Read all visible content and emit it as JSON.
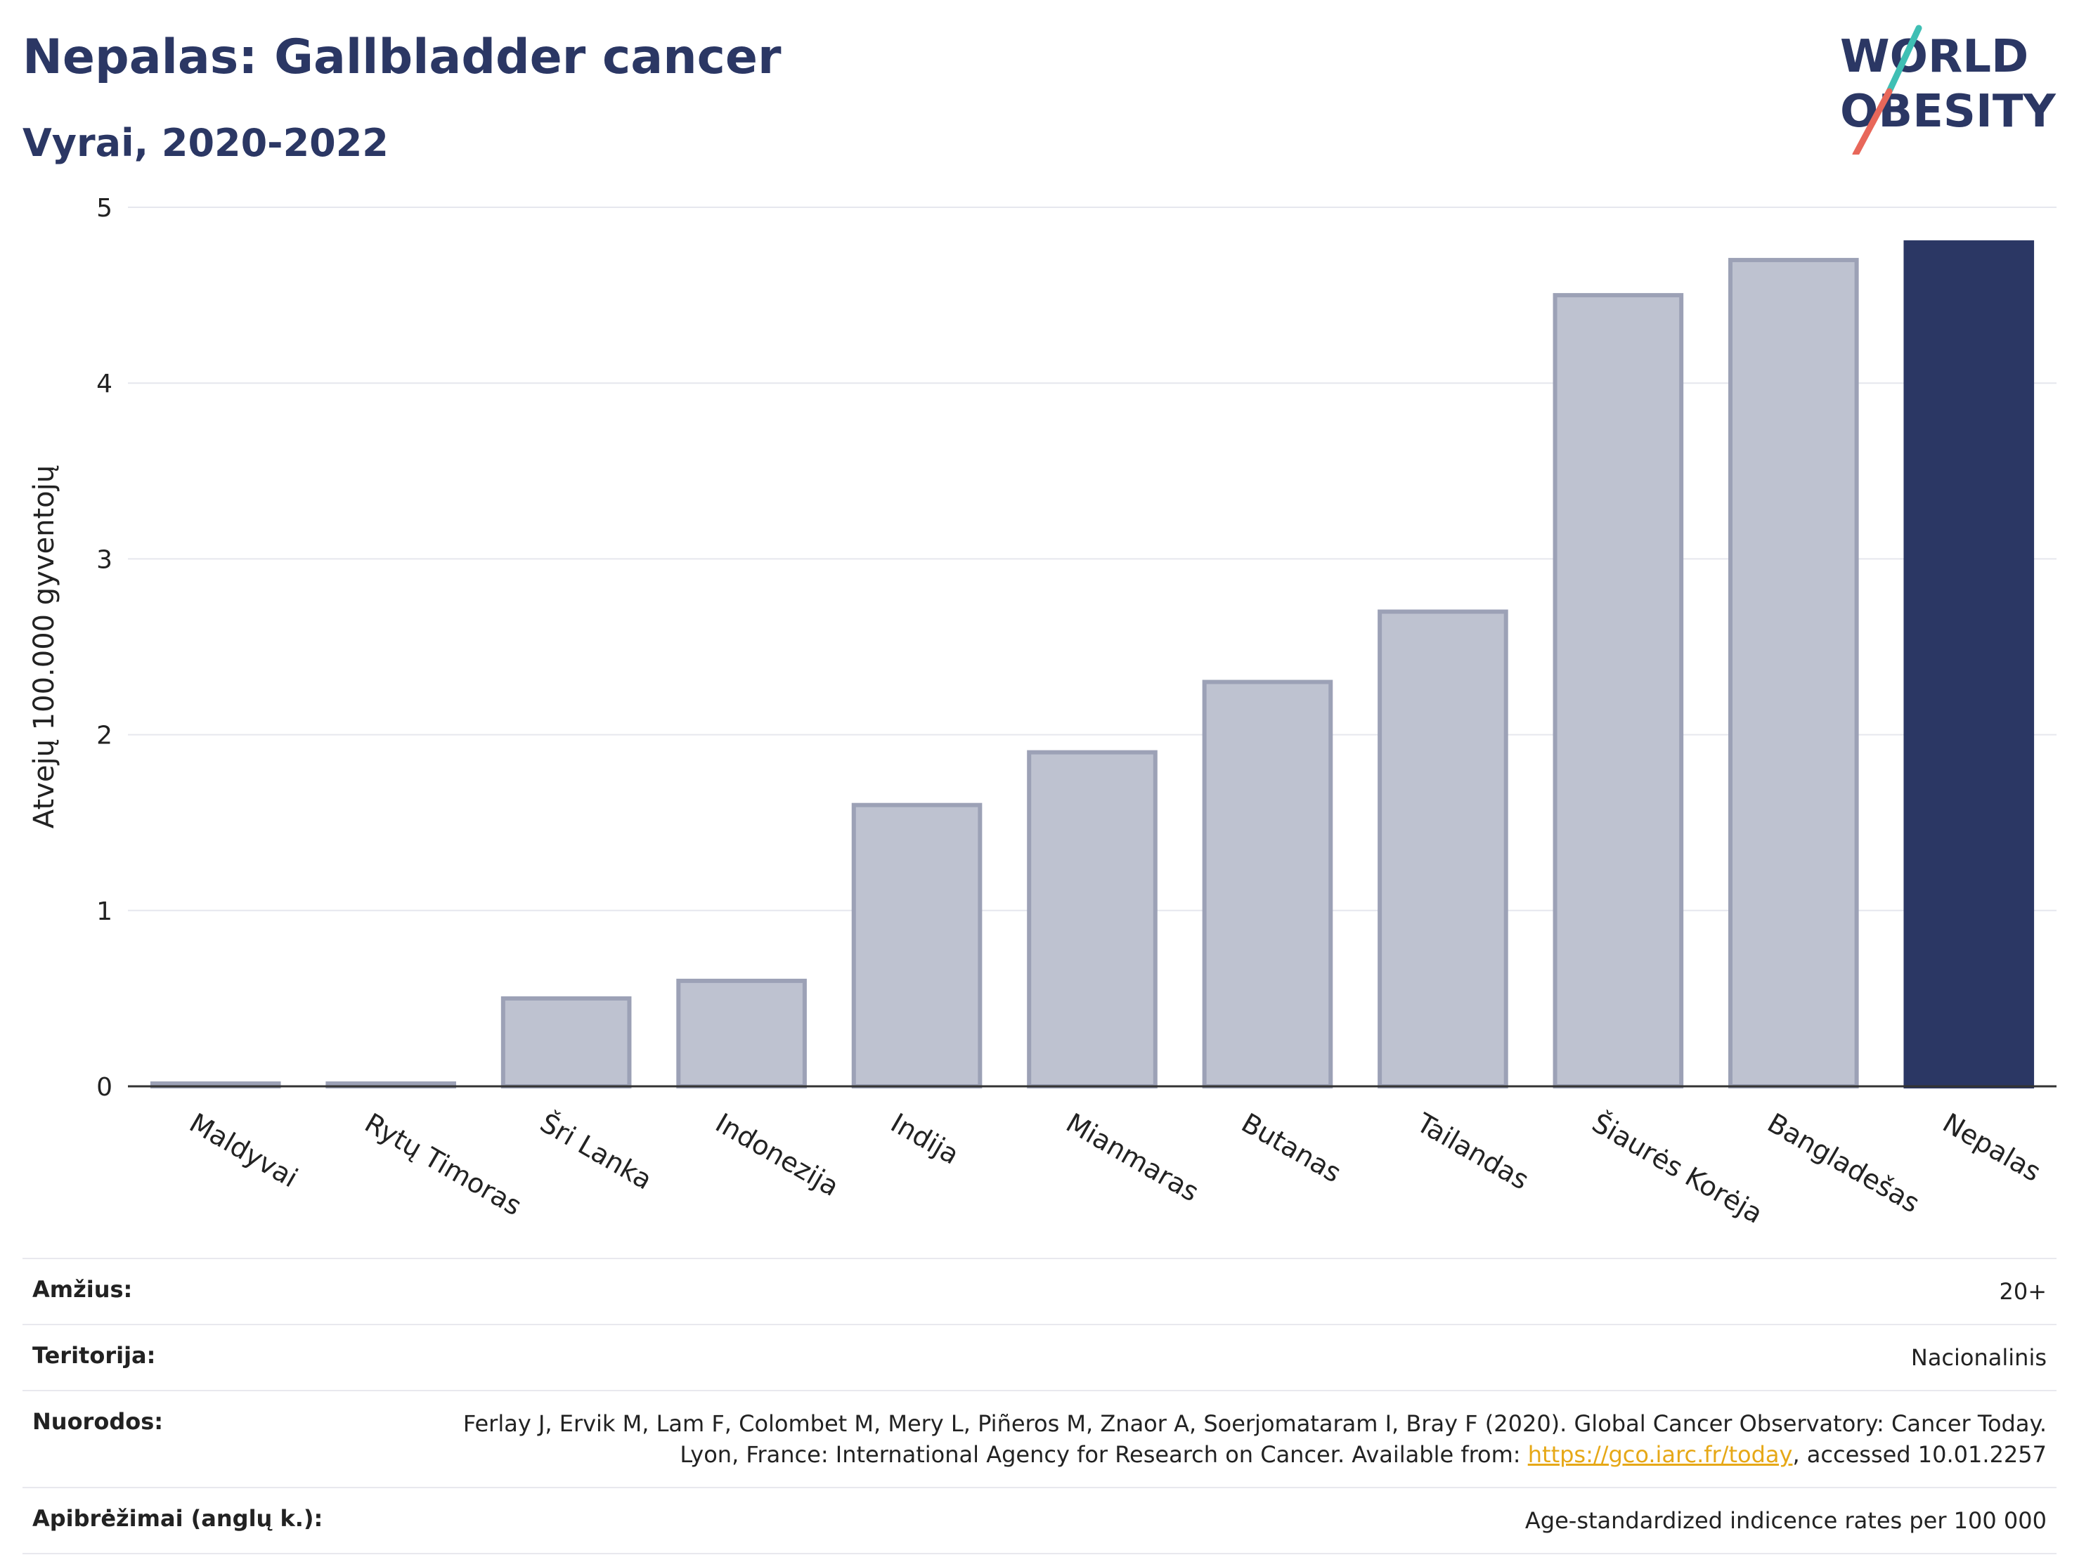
{
  "header": {
    "title": "Nepalas: Gallbladder cancer",
    "subtitle": "Vyrai, 2020-2022"
  },
  "logo": {
    "line1": "WORLD",
    "line2": "OBESITY",
    "accent_teal": "#3fbfb4",
    "accent_red": "#e8675a"
  },
  "colors": {
    "bar": "#bec2d0",
    "bar_border": "#9ca1b6",
    "highlight": "#2b3764"
  },
  "chart_data": {
    "type": "bar",
    "ylabel": "Atvejų 100.000 gyventojų",
    "ylim": [
      0,
      5
    ],
    "yticks": [
      0,
      1,
      2,
      3,
      4,
      5
    ],
    "grid": true,
    "categories": [
      "Maldyvai",
      "Rytų Timoras",
      "Šri Lanka",
      "Indonezija",
      "Indija",
      "Mianmaras",
      "Butanas",
      "Tailandas",
      "Šiaurės Korėja",
      "Bangladešas",
      "Nepalas"
    ],
    "values": [
      0.0,
      0.0,
      0.5,
      0.6,
      1.6,
      1.9,
      2.3,
      2.7,
      4.5,
      4.7,
      4.8
    ],
    "highlight": "Nepalas"
  },
  "meta": {
    "age_label": "Amžius:",
    "age_value": "20+",
    "territory_label": "Teritorija:",
    "territory_value": "Nacionalinis",
    "refs_label": "Nuorodos:",
    "refs_text_1": "Ferlay J, Ervik M, Lam F, Colombet M, Mery L, Piñeros M, Znaor A, Soerjomataram I, Bray F (2020). Global Cancer Observatory: Cancer Today. Lyon, France: International Agency for Research on Cancer. Available from: ",
    "refs_link": "https://gco.iarc.fr/today",
    "refs_text_2": ", accessed 10.01.2257",
    "defs_label": "Apibrėžimai (anglų k.):",
    "defs_value": "Age-standardized indicence rates per 100 000"
  }
}
